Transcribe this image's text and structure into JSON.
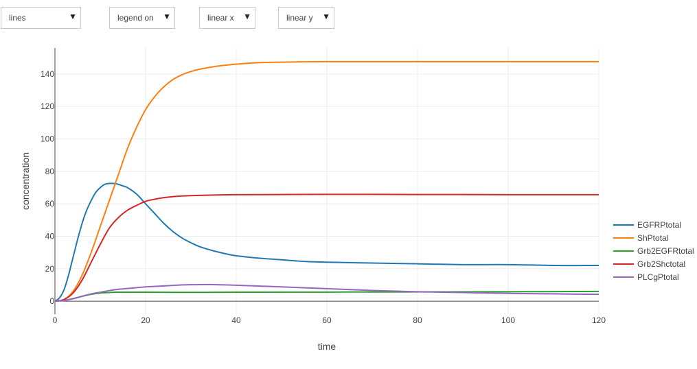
{
  "controls": {
    "mode": "lines",
    "legend": "legend on",
    "xscale": "linear x",
    "yscale": "linear y",
    "arrow": "▼"
  },
  "chart_data": {
    "type": "line",
    "xlabel": "time",
    "ylabel": "concentration",
    "xlim": [
      0,
      120
    ],
    "ylim": [
      -8,
      156
    ],
    "xticks": [
      0,
      20,
      40,
      60,
      80,
      100,
      120
    ],
    "yticks": [
      0,
      20,
      40,
      60,
      80,
      100,
      120,
      140
    ],
    "grid": true,
    "legend_position": "right",
    "series": [
      {
        "name": "EGFRPtotal",
        "color": "#1f77b4",
        "x": [
          0,
          1,
          2,
          3,
          4,
          5,
          6,
          7,
          8,
          9,
          10,
          11,
          12,
          13,
          14,
          15,
          16,
          18,
          20,
          22,
          24,
          26,
          28,
          30,
          32,
          35,
          38,
          40,
          45,
          50,
          55,
          60,
          70,
          80,
          90,
          100,
          110,
          120
        ],
        "y": [
          0,
          2,
          7,
          16,
          27,
          38,
          48,
          56,
          62,
          67,
          70,
          72,
          72.5,
          72.5,
          72,
          71,
          70,
          66,
          60,
          54,
          48,
          43,
          39,
          36,
          33.5,
          31,
          29,
          28,
          26.5,
          25.5,
          24.5,
          24,
          23.5,
          23,
          22.5,
          22.5,
          22,
          22
        ]
      },
      {
        "name": "ShPtotal",
        "color": "#ff7f0e",
        "x": [
          0,
          2,
          4,
          6,
          8,
          10,
          12,
          14,
          16,
          18,
          20,
          22,
          24,
          26,
          28,
          30,
          32,
          35,
          38,
          40,
          45,
          50,
          55,
          60,
          70,
          80,
          90,
          100,
          110,
          120
        ],
        "y": [
          0,
          1,
          6,
          16,
          30,
          46,
          62,
          78,
          94,
          107,
          118,
          126,
          132,
          136.5,
          139.5,
          141.5,
          143,
          144.5,
          145.5,
          146,
          147,
          147.3,
          147.5,
          147.6,
          147.6,
          147.6,
          147.6,
          147.6,
          147.6,
          147.6
        ]
      },
      {
        "name": "Grb2EGFRtotal",
        "color": "#2ca02c",
        "x": [
          0,
          2,
          4,
          6,
          8,
          10,
          12,
          14,
          16,
          20,
          30,
          40,
          60,
          80,
          100,
          120
        ],
        "y": [
          0,
          0.5,
          1.5,
          3,
          4.2,
          5,
          5.3,
          5.5,
          5.5,
          5.5,
          5.4,
          5.5,
          5.6,
          5.7,
          5.8,
          6
        ]
      },
      {
        "name": "Grb2Shctotal",
        "color": "#d62728",
        "x": [
          0,
          2,
          4,
          6,
          8,
          10,
          12,
          14,
          16,
          18,
          20,
          22,
          24,
          26,
          28,
          30,
          32,
          35,
          40,
          50,
          60,
          70,
          80,
          90,
          100,
          110,
          120
        ],
        "y": [
          0,
          1,
          5,
          13,
          24,
          35,
          45,
          51.5,
          56,
          59,
          61.5,
          62.8,
          63.8,
          64.4,
          64.8,
          65,
          65.2,
          65.4,
          65.6,
          65.7,
          65.8,
          65.8,
          65.7,
          65.7,
          65.6,
          65.6,
          65.6
        ]
      },
      {
        "name": "PLCgPtotal",
        "color": "#9467bd",
        "x": [
          0,
          2,
          4,
          6,
          8,
          10,
          12,
          14,
          16,
          18,
          20,
          24,
          28,
          30,
          35,
          40,
          50,
          60,
          70,
          80,
          90,
          100,
          110,
          120
        ],
        "y": [
          0,
          0.4,
          1.5,
          3,
          4.5,
          5.5,
          6.5,
          7.3,
          7.8,
          8.3,
          8.8,
          9.4,
          10,
          10.1,
          10.2,
          9.8,
          8.8,
          7.7,
          6.6,
          5.8,
          5.3,
          4.8,
          4.5,
          4.2
        ]
      }
    ]
  }
}
